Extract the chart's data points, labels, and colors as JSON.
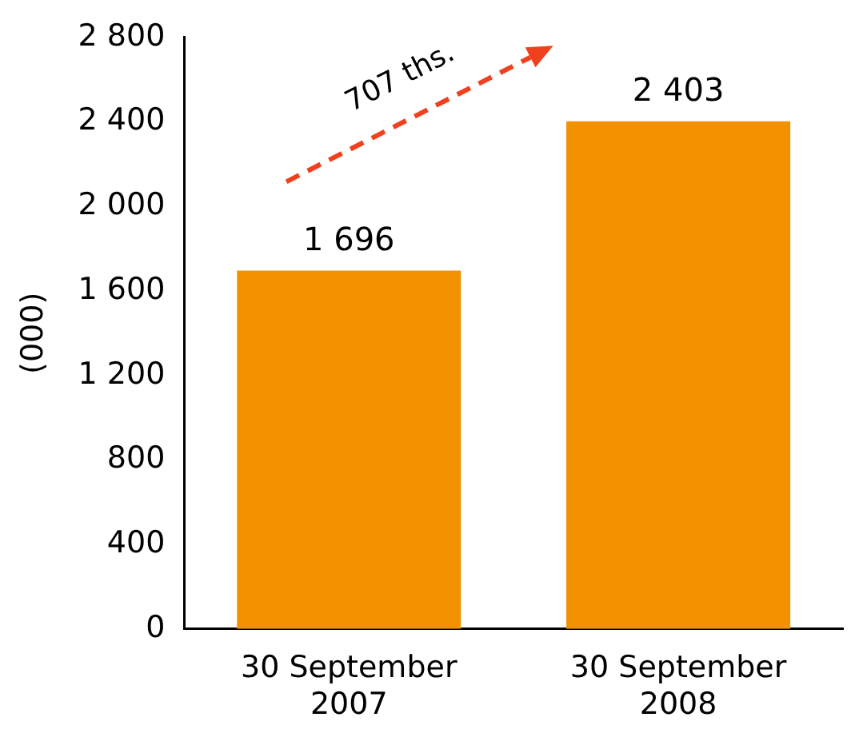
{
  "chart_data": {
    "type": "bar",
    "ylabel": "(000)",
    "categories": [
      "30 September 2007",
      "30 September 2008"
    ],
    "values": [
      1696,
      2403
    ],
    "color": "#f39200",
    "value_labels": [
      "1 696",
      "2 403"
    ],
    "ylim": [
      0,
      2800
    ],
    "yticks": [
      {
        "value": 0,
        "label": "0"
      },
      {
        "value": 400,
        "label": "400"
      },
      {
        "value": 800,
        "label": "800"
      },
      {
        "value": 1200,
        "label": "1 200"
      },
      {
        "value": 1600,
        "label": "1 600"
      },
      {
        "value": 2000,
        "label": "2 000"
      },
      {
        "value": 2400,
        "label": "2 400"
      },
      {
        "value": 2800,
        "label": "2 800"
      }
    ],
    "grid": false,
    "legend": false,
    "annotations": [
      "707 ths."
    ]
  }
}
